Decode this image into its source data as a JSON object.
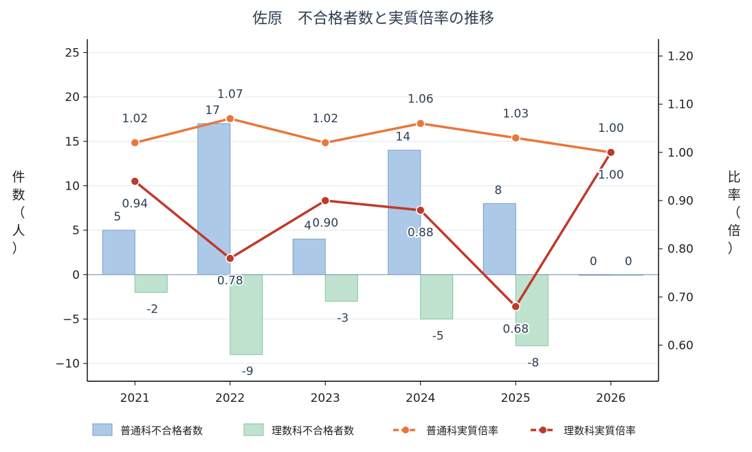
{
  "chart_data": {
    "type": "bar",
    "title": "佐原　不合格者数と実質倍率の推移",
    "categories": [
      "2021",
      "2022",
      "2023",
      "2024",
      "2025",
      "2026"
    ],
    "ylabel_left": "件数（人）",
    "ylabel_right": "比率（倍）",
    "ylim_left": [
      -12,
      26.5
    ],
    "ylim_right": [
      0.525,
      1.235
    ],
    "yticks_left": [
      -10,
      -5,
      0,
      5,
      10,
      15,
      20,
      25
    ],
    "yticks_left_labels": [
      "−10",
      "−5",
      "0",
      "5",
      "10",
      "15",
      "20",
      "25"
    ],
    "yticks_right": [
      0.6,
      0.7,
      0.8,
      0.9,
      1.0,
      1.1,
      1.2
    ],
    "yticks_right_labels": [
      "0.60",
      "0.70",
      "0.80",
      "0.90",
      "1.00",
      "1.10",
      "1.20"
    ],
    "grid": true,
    "legend_position": "bottom",
    "series": [
      {
        "name": "普通科不合格者数",
        "kind": "bar",
        "axis": "left",
        "values": [
          5,
          17,
          4,
          14,
          8,
          0
        ],
        "labels": [
          "5",
          "17",
          "4",
          "14",
          "8",
          "0"
        ],
        "color": "#adc9e8",
        "edge": "#7a9cc3"
      },
      {
        "name": "理数科不合格者数",
        "kind": "bar",
        "axis": "left",
        "values": [
          -2,
          -9,
          -3,
          -5,
          -8,
          0
        ],
        "labels": [
          "-2",
          "-9",
          "-3",
          "-5",
          "-8",
          "0"
        ],
        "color": "#bfe3cf",
        "edge": "#85c19d"
      },
      {
        "name": "普通科実質倍率",
        "kind": "line",
        "axis": "right",
        "values": [
          1.02,
          1.07,
          1.02,
          1.06,
          1.03,
          1.0
        ],
        "labels": [
          "1.02",
          "1.07",
          "1.02",
          "1.06",
          "1.03",
          "1.00"
        ],
        "color": "#e8773a"
      },
      {
        "name": "理数科実質倍率",
        "kind": "line",
        "axis": "right",
        "values": [
          0.94,
          0.78,
          0.9,
          0.88,
          0.68,
          1.0
        ],
        "labels": [
          "0.94",
          "0.78",
          "0.90",
          "0.88",
          "0.68",
          "1.00"
        ],
        "color": "#c0392b"
      }
    ]
  }
}
